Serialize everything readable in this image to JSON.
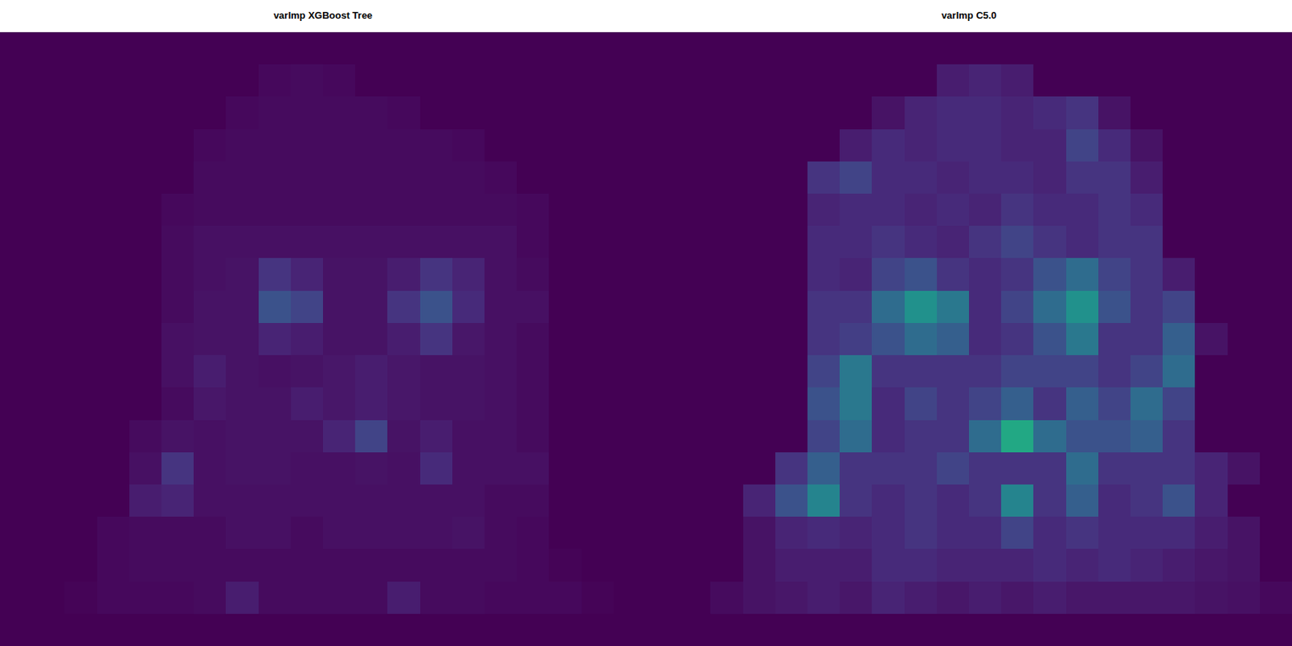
{
  "chart_data": [
    {
      "type": "heatmap",
      "title": "varImp XGBoost Tree",
      "tick_labels": false,
      "zlim": [
        0,
        100
      ],
      "z": [
        [
          0,
          0,
          0,
          0,
          0,
          0,
          0,
          0,
          0,
          0,
          0,
          0,
          0,
          0,
          0,
          0,
          0,
          0,
          0,
          0
        ],
        [
          0,
          0,
          0,
          0,
          0,
          0,
          0,
          0,
          2,
          3,
          2,
          0,
          0,
          0,
          0,
          0,
          0,
          0,
          0,
          0
        ],
        [
          0,
          0,
          0,
          0,
          0,
          0,
          0,
          2,
          3,
          3,
          3,
          3,
          2,
          0,
          0,
          0,
          0,
          0,
          0,
          0
        ],
        [
          0,
          0,
          0,
          0,
          0,
          0,
          2,
          3,
          3,
          3,
          3,
          3,
          3,
          3,
          2,
          0,
          0,
          0,
          0,
          0
        ],
        [
          0,
          0,
          0,
          0,
          0,
          0,
          3,
          3,
          3,
          3,
          3,
          3,
          3,
          3,
          3,
          2,
          0,
          0,
          0,
          0
        ],
        [
          0,
          0,
          0,
          0,
          0,
          2,
          3,
          3,
          3,
          3,
          3,
          3,
          3,
          3,
          3,
          3,
          2,
          0,
          0,
          0
        ],
        [
          0,
          0,
          0,
          0,
          0,
          3,
          4,
          4,
          4,
          4,
          4,
          4,
          4,
          4,
          4,
          4,
          2,
          0,
          0,
          0
        ],
        [
          0,
          0,
          0,
          0,
          0,
          3,
          4,
          5,
          15,
          10,
          5,
          5,
          8,
          15,
          10,
          4,
          3,
          0,
          0,
          0
        ],
        [
          0,
          0,
          0,
          0,
          0,
          3,
          5,
          5,
          25,
          20,
          5,
          5,
          15,
          25,
          12,
          4,
          4,
          0,
          0,
          0
        ],
        [
          0,
          0,
          0,
          0,
          0,
          4,
          5,
          5,
          10,
          8,
          5,
          5,
          8,
          15,
          6,
          4,
          3,
          0,
          0,
          0
        ],
        [
          0,
          0,
          0,
          0,
          0,
          4,
          8,
          5,
          4,
          5,
          6,
          8,
          6,
          5,
          5,
          4,
          3,
          0,
          0,
          0
        ],
        [
          0,
          0,
          0,
          0,
          0,
          3,
          6,
          5,
          5,
          8,
          6,
          8,
          6,
          5,
          5,
          4,
          3,
          0,
          0,
          0
        ],
        [
          0,
          0,
          0,
          0,
          3,
          5,
          4,
          5,
          5,
          5,
          10,
          20,
          5,
          8,
          4,
          4,
          3,
          0,
          0,
          0
        ],
        [
          0,
          0,
          0,
          0,
          4,
          15,
          4,
          5,
          5,
          4,
          4,
          5,
          4,
          12,
          4,
          4,
          4,
          0,
          0,
          0
        ],
        [
          0,
          0,
          0,
          0,
          8,
          10,
          4,
          4,
          4,
          4,
          4,
          4,
          4,
          4,
          4,
          3,
          3,
          0,
          0,
          0
        ],
        [
          0,
          0,
          0,
          2,
          3,
          3,
          3,
          4,
          4,
          3,
          4,
          4,
          4,
          4,
          5,
          3,
          2,
          0,
          0,
          0
        ],
        [
          0,
          0,
          0,
          2,
          3,
          3,
          3,
          3,
          3,
          3,
          3,
          3,
          3,
          3,
          3,
          3,
          2,
          1,
          0,
          0
        ],
        [
          0,
          0,
          1,
          2,
          2,
          2,
          3,
          8,
          3,
          3,
          3,
          3,
          8,
          3,
          3,
          2,
          2,
          2,
          1,
          0
        ],
        [
          0,
          0,
          0,
          0,
          0,
          0,
          0,
          0,
          0,
          0,
          0,
          0,
          0,
          0,
          0,
          0,
          0,
          0,
          0,
          0
        ]
      ]
    },
    {
      "type": "heatmap",
      "title": "varImp C5.0",
      "tick_labels": false,
      "zlim": [
        0,
        100
      ],
      "z": [
        [
          0,
          0,
          0,
          0,
          0,
          0,
          0,
          0,
          0,
          0,
          0,
          0,
          0,
          0,
          0,
          0,
          0,
          0,
          0,
          0
        ],
        [
          0,
          0,
          0,
          0,
          0,
          0,
          0,
          0,
          0,
          8,
          10,
          8,
          0,
          0,
          0,
          0,
          0,
          0,
          0,
          0
        ],
        [
          0,
          0,
          0,
          0,
          0,
          0,
          0,
          5,
          10,
          12,
          12,
          10,
          12,
          15,
          5,
          0,
          0,
          0,
          0,
          0
        ],
        [
          0,
          0,
          0,
          0,
          0,
          0,
          8,
          12,
          10,
          12,
          12,
          10,
          10,
          20,
          12,
          5,
          0,
          0,
          0,
          0
        ],
        [
          0,
          0,
          0,
          0,
          0,
          15,
          20,
          12,
          12,
          10,
          12,
          12,
          10,
          15,
          15,
          8,
          0,
          0,
          0,
          0
        ],
        [
          0,
          0,
          0,
          0,
          0,
          10,
          12,
          12,
          10,
          12,
          10,
          15,
          12,
          12,
          15,
          12,
          0,
          0,
          0,
          0
        ],
        [
          0,
          0,
          0,
          0,
          0,
          12,
          12,
          15,
          12,
          10,
          15,
          20,
          15,
          12,
          15,
          15,
          0,
          0,
          0,
          0
        ],
        [
          0,
          0,
          0,
          0,
          0,
          12,
          10,
          20,
          25,
          15,
          12,
          15,
          25,
          35,
          20,
          15,
          8,
          0,
          0,
          0
        ],
        [
          0,
          0,
          0,
          0,
          0,
          15,
          15,
          35,
          50,
          40,
          12,
          20,
          35,
          50,
          25,
          15,
          20,
          0,
          0,
          0
        ],
        [
          0,
          0,
          0,
          0,
          0,
          15,
          18,
          25,
          35,
          30,
          12,
          15,
          25,
          40,
          15,
          15,
          30,
          5,
          0,
          0
        ],
        [
          0,
          0,
          0,
          0,
          0,
          20,
          40,
          15,
          15,
          15,
          15,
          20,
          20,
          20,
          15,
          20,
          35,
          0,
          0,
          0
        ],
        [
          0,
          0,
          0,
          0,
          0,
          25,
          40,
          12,
          20,
          15,
          20,
          30,
          15,
          30,
          20,
          35,
          20,
          0,
          0,
          0
        ],
        [
          0,
          0,
          0,
          0,
          0,
          20,
          35,
          12,
          15,
          15,
          35,
          60,
          35,
          25,
          25,
          30,
          15,
          0,
          0,
          0
        ],
        [
          0,
          0,
          0,
          0,
          15,
          30,
          15,
          15,
          15,
          20,
          15,
          15,
          15,
          35,
          15,
          15,
          15,
          10,
          5,
          0
        ],
        [
          0,
          0,
          0,
          10,
          25,
          45,
          15,
          12,
          15,
          12,
          15,
          45,
          15,
          30,
          12,
          15,
          25,
          10,
          0,
          0
        ],
        [
          0,
          0,
          0,
          5,
          10,
          12,
          10,
          12,
          15,
          12,
          12,
          20,
          12,
          15,
          12,
          12,
          12,
          8,
          5,
          0
        ],
        [
          0,
          0,
          0,
          5,
          8,
          8,
          8,
          12,
          12,
          10,
          10,
          10,
          12,
          10,
          12,
          10,
          8,
          6,
          5,
          0
        ],
        [
          0,
          0,
          3,
          5,
          6,
          8,
          6,
          10,
          8,
          6,
          8,
          6,
          8,
          6,
          6,
          6,
          6,
          5,
          4,
          2
        ],
        [
          0,
          0,
          0,
          0,
          0,
          0,
          0,
          0,
          0,
          0,
          0,
          0,
          0,
          0,
          0,
          0,
          0,
          0,
          0,
          0
        ]
      ]
    }
  ]
}
